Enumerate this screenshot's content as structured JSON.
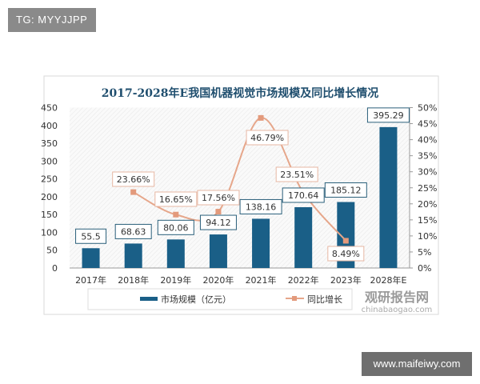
{
  "watermarks": {
    "top_left": "TG: MYYJJPP",
    "bottom_right": "www.maifeiwy.com"
  },
  "logo": {
    "cn": "观研报告网",
    "en": "chinabaogao.com"
  },
  "chart_data": {
    "type": "bar+line",
    "title": "2017-2028年E我国机器视觉市场规模及同比增长情况",
    "categories": [
      "2017年",
      "2018年",
      "2019年",
      "2020年",
      "2021年",
      "2022年",
      "2023年",
      "2028年E"
    ],
    "series": [
      {
        "name": "市场规模（亿元）",
        "type": "bar",
        "axis": "left",
        "color": "#1a5f87",
        "values": [
          55.5,
          68.63,
          80.06,
          94.12,
          138.16,
          170.64,
          185.12,
          395.29
        ],
        "labels": [
          "55.5",
          "68.63",
          "80.06",
          "94.12",
          "138.16",
          "170.64",
          "185.12",
          "395.29"
        ]
      },
      {
        "name": "同比增长",
        "type": "line",
        "axis": "right",
        "color": "#e6a68a",
        "values": [
          null,
          23.66,
          16.65,
          17.56,
          46.79,
          23.51,
          8.49,
          null
        ],
        "labels": [
          "",
          "23.66%",
          "16.65%",
          "17.56%",
          "46.79%",
          "23.51%",
          "8.49%",
          ""
        ]
      }
    ],
    "y_left": {
      "range": [
        0,
        450
      ],
      "ticks": [
        "0",
        "50",
        "100",
        "150",
        "200",
        "250",
        "300",
        "350",
        "400",
        "450"
      ]
    },
    "y_right": {
      "range": [
        0,
        50
      ],
      "ticks": [
        "0%",
        "5%",
        "10%",
        "15%",
        "20%",
        "25%",
        "30%",
        "35%",
        "40%",
        "45%",
        "50%"
      ]
    },
    "legend": "bottom",
    "grid": false
  }
}
